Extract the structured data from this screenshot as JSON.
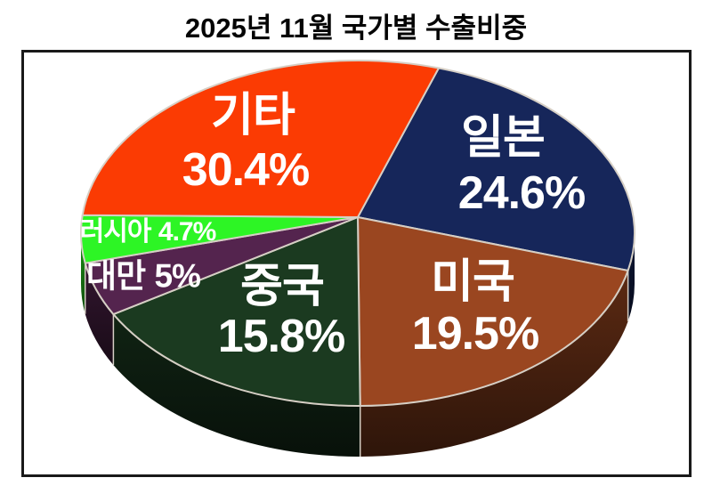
{
  "title": "2025년 11월 국가별 수출비중",
  "chart_data": {
    "type": "pie",
    "style": "3d",
    "title": "2025년 11월 국가별 수출비중",
    "unit": "%",
    "total": 100,
    "legend": "none",
    "labels_on_slices": true,
    "order": "clockwise-from-top",
    "slices": [
      {
        "key": "japan",
        "label": "일본",
        "value": 24.6,
        "pct_label": "24.6%",
        "color": "#16265a"
      },
      {
        "key": "usa",
        "label": "미국",
        "value": 19.5,
        "pct_label": "19.5%",
        "color": "#9a4620"
      },
      {
        "key": "china",
        "label": "중국",
        "value": 15.8,
        "pct_label": "15.8%",
        "color": "#1b3a20"
      },
      {
        "key": "taiwan",
        "label": "대만",
        "value": 5,
        "pct_label": "5%",
        "color": "#54244e"
      },
      {
        "key": "russia",
        "label": "러시아",
        "value": 4.7,
        "pct_label": "4.7%",
        "color": "#2df525"
      },
      {
        "key": "etc",
        "label": "기타",
        "value": 30.4,
        "pct_label": "30.4%",
        "color": "#fb3b03"
      }
    ],
    "colors": {
      "label_text": "#ffffff",
      "separator": "#d6cfc5",
      "frame_border": "#191919",
      "title_text": "#050505",
      "background": "#ffffff"
    }
  }
}
